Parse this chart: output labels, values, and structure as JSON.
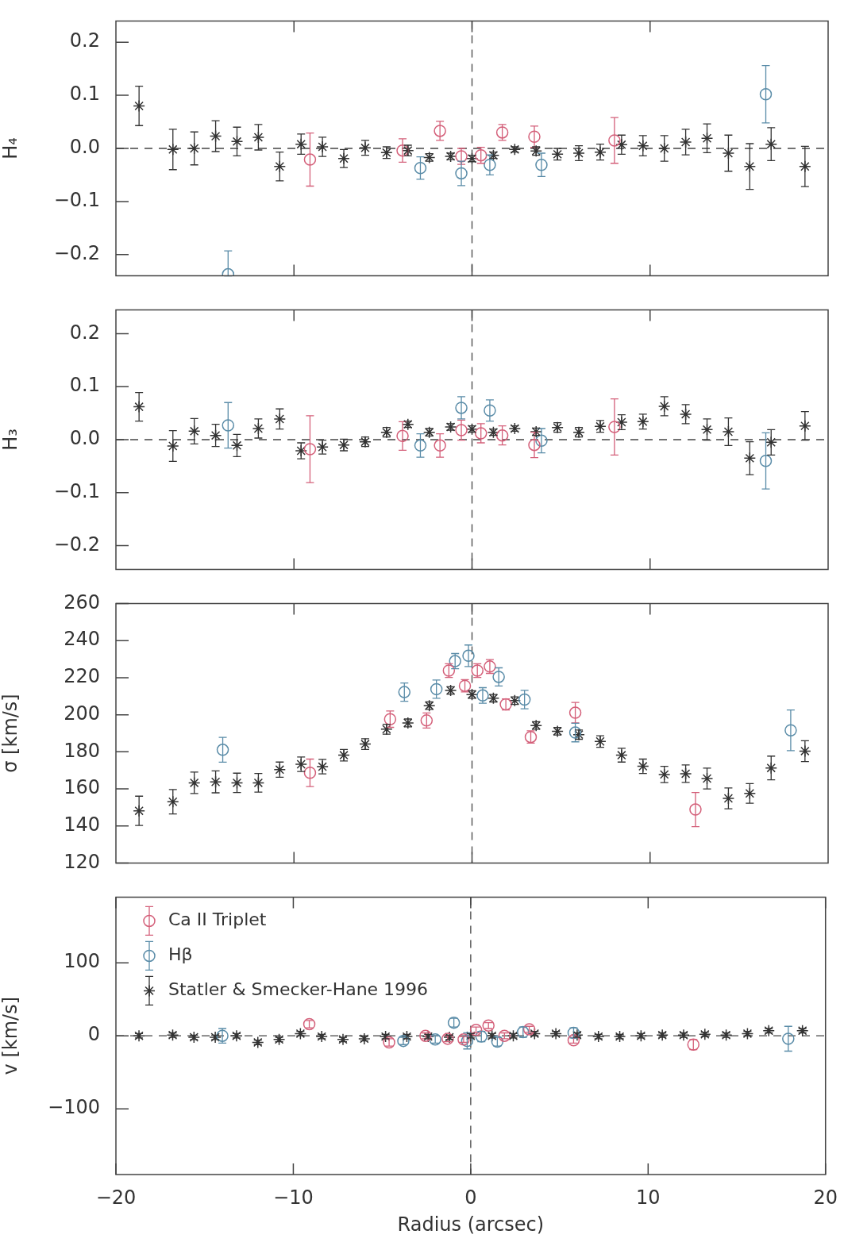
{
  "chart_data": [
    {
      "type": "scatter",
      "ylabel": "H₄",
      "xlim": [
        -20,
        20
      ],
      "xticks": [
        -10,
        0,
        10
      ],
      "ylim": [
        -0.24,
        0.24
      ],
      "yticks": [
        {
          "value": -0.2,
          "label": "−0.2"
        },
        {
          "value": -0.1,
          "label": "−0.1"
        },
        {
          "value": 0,
          "label": "0.0"
        },
        0.1,
        0.2
      ],
      "tick_labels": "y",
      "ref_lines": [
        {
          "axis": "x",
          "value": 0,
          "line_style": "dashed"
        },
        {
          "axis": "y",
          "value": 0,
          "line_style": "dashed"
        }
      ],
      "series": [
        {
          "color": "#d4607a",
          "marker": "circle",
          "x": [
            -9.1,
            -3.9,
            -1.8,
            -0.6,
            0.5,
            1.7,
            3.5,
            8.0
          ],
          "values": [
            -0.021,
            -0.004,
            0.033,
            -0.015,
            -0.013,
            0.03,
            0.022,
            0.015
          ],
          "errors": [
            0.05,
            0.022,
            0.018,
            0.015,
            0.015,
            0.015,
            0.02,
            0.043
          ]
        },
        {
          "color": "#5a8ca8",
          "marker": "circle",
          "x": [
            -13.7,
            -2.9,
            -0.6,
            1.0,
            3.9,
            16.5
          ],
          "values": [
            -0.237,
            -0.037,
            -0.047,
            -0.031,
            -0.031,
            0.102
          ],
          "errors": [
            [
              -0.24,
              -0.193
            ],
            0.021,
            0.023,
            0.019,
            0.022,
            0.054
          ]
        },
        {
          "color": "#333333",
          "marker": "cross",
          "x": [
            -18.7,
            -16.8,
            -15.6,
            -14.4,
            -13.2,
            -12.0,
            -10.8,
            -9.6,
            -8.4,
            -7.2,
            -6.0,
            -4.8,
            -3.6,
            -2.4,
            -1.2,
            0,
            1.2,
            2.4,
            3.6,
            4.8,
            6.0,
            7.2,
            8.4,
            9.6,
            10.8,
            12.0,
            13.2,
            14.4,
            15.6,
            16.8,
            18.7
          ],
          "values": [
            0.08,
            -0.002,
            0.0,
            0.023,
            0.013,
            0.021,
            -0.034,
            0.008,
            0.003,
            -0.019,
            0.001,
            -0.008,
            -0.004,
            -0.017,
            -0.015,
            -0.019,
            -0.013,
            -0.002,
            -0.005,
            -0.011,
            -0.009,
            -0.007,
            0.007,
            0.005,
            0.0,
            0.012,
            0.019,
            -0.009,
            -0.034,
            0.008,
            -0.034
          ],
          "errors": [
            0.037,
            0.038,
            0.031,
            0.029,
            0.027,
            0.024,
            0.027,
            0.019,
            0.018,
            0.017,
            0.014,
            0.011,
            0.01,
            0.007,
            0.006,
            0.006,
            0.006,
            0.005,
            0.008,
            0.011,
            0.014,
            0.015,
            0.018,
            0.019,
            0.024,
            0.024,
            0.027,
            0.034,
            0.043,
            0.031,
            0.038
          ]
        }
      ]
    },
    {
      "type": "scatter",
      "ylabel": "H₃",
      "xlim": [
        -20,
        20
      ],
      "xticks": [
        -10,
        0,
        10
      ],
      "ylim": [
        -0.245,
        0.245
      ],
      "yticks": [
        {
          "value": -0.2,
          "label": "−0.2"
        },
        {
          "value": -0.1,
          "label": "−0.1"
        },
        {
          "value": 0,
          "label": "0.0"
        },
        0.1,
        0.2
      ],
      "tick_labels": "y",
      "ref_lines": [
        {
          "axis": "x",
          "value": 0,
          "line_style": "dashed"
        },
        {
          "axis": "y",
          "value": 0,
          "line_style": "dashed"
        }
      ],
      "series": [
        {
          "color": "#d4607a",
          "marker": "circle",
          "x": [
            -9.1,
            -3.9,
            -1.8,
            -0.6,
            0.5,
            1.7,
            3.5,
            8.0
          ],
          "values": [
            -0.018,
            0.007,
            -0.011,
            0.018,
            0.012,
            0.008,
            -0.01,
            0.024
          ],
          "errors": [
            0.063,
            0.027,
            0.022,
            0.019,
            0.018,
            0.018,
            0.024,
            0.053
          ]
        },
        {
          "color": "#5a8ca8",
          "marker": "circle",
          "x": [
            -13.7,
            -2.9,
            -0.6,
            1.0,
            3.9,
            16.5
          ],
          "values": [
            0.027,
            -0.011,
            0.06,
            0.055,
            -0.002,
            -0.04
          ],
          "errors": [
            0.043,
            0.022,
            0.021,
            0.02,
            0.023,
            0.053
          ]
        },
        {
          "color": "#333333",
          "marker": "cross",
          "x": [
            -18.7,
            -16.8,
            -15.6,
            -14.4,
            -13.2,
            -12.0,
            -10.8,
            -9.6,
            -8.4,
            -7.2,
            -6.0,
            -4.8,
            -3.6,
            -2.4,
            -1.2,
            0,
            1.2,
            2.4,
            3.6,
            4.8,
            6.0,
            7.2,
            8.4,
            9.6,
            10.8,
            12.0,
            13.2,
            14.4,
            15.6,
            16.8,
            18.7
          ],
          "values": [
            0.062,
            -0.012,
            0.016,
            0.008,
            -0.011,
            0.021,
            0.039,
            -0.021,
            -0.014,
            -0.01,
            -0.004,
            0.014,
            0.029,
            0.014,
            0.024,
            0.02,
            0.014,
            0.021,
            0.015,
            0.023,
            0.014,
            0.025,
            0.033,
            0.034,
            0.063,
            0.048,
            0.019,
            0.015,
            -0.035,
            -0.005,
            0.026
          ],
          "errors": [
            0.027,
            0.029,
            0.024,
            0.021,
            0.021,
            0.018,
            0.019,
            0.015,
            0.013,
            0.011,
            0.009,
            0.009,
            0.006,
            0.007,
            0.006,
            0.006,
            0.006,
            0.005,
            0.007,
            0.009,
            0.009,
            0.011,
            0.014,
            0.014,
            0.018,
            0.018,
            0.02,
            0.026,
            0.031,
            0.024,
            0.027
          ]
        }
      ]
    },
    {
      "type": "scatter",
      "ylabel": "σ [km/s]",
      "xlim": [
        -20,
        20
      ],
      "xticks": [
        -10,
        0,
        10
      ],
      "ylim": [
        120,
        260
      ],
      "yticks": [
        120,
        140,
        160,
        180,
        200,
        220,
        240,
        260
      ],
      "tick_labels": "y",
      "ref_lines": [
        {
          "axis": "x",
          "value": 0,
          "line_style": "dashed"
        }
      ],
      "series": [
        {
          "color": "#d4607a",
          "marker": "circle",
          "x": [
            -9.1,
            -4.6,
            -2.55,
            -1.3,
            -0.4,
            0.3,
            1.0,
            1.9,
            3.3,
            5.8,
            12.55
          ],
          "values": [
            168.7,
            197.6,
            196.9,
            223.8,
            215.6,
            223.8,
            226.0,
            205.6,
            188.0,
            201.1,
            148.9
          ],
          "errors": [
            7.4,
            4.4,
            4.1,
            3.7,
            3.3,
            3.7,
            3.7,
            3.0,
            3.3,
            5.5,
            9.2
          ]
        },
        {
          "color": "#5a8ca8",
          "marker": "circle",
          "x": [
            -14.0,
            -3.8,
            -2.0,
            -0.95,
            -0.2,
            0.6,
            1.5,
            2.95,
            5.8,
            17.9
          ],
          "values": [
            181.1,
            212.2,
            213.8,
            228.9,
            231.8,
            210.4,
            220.4,
            208.2,
            190.4,
            191.6
          ],
          "errors": [
            6.7,
            4.9,
            4.9,
            4.1,
            5.8,
            4.2,
            4.9,
            5.0,
            5.0,
            11.0
          ]
        },
        {
          "color": "#333333",
          "marker": "cross",
          "x": [
            -18.7,
            -16.8,
            -15.6,
            -14.4,
            -13.2,
            -12.0,
            -10.8,
            -9.6,
            -8.4,
            -7.2,
            -6.0,
            -4.8,
            -3.6,
            -2.4,
            -1.2,
            0,
            1.2,
            2.4,
            3.6,
            4.8,
            6.0,
            7.2,
            8.4,
            9.6,
            10.8,
            12.0,
            13.2,
            14.4,
            15.6,
            16.8,
            18.7
          ],
          "values": [
            148.2,
            153.1,
            163.3,
            163.8,
            163.3,
            163.3,
            170.4,
            173.3,
            172.0,
            178.2,
            184.2,
            192.2,
            195.6,
            204.9,
            213.1,
            210.9,
            208.9,
            207.6,
            194.2,
            191.1,
            189.3,
            185.6,
            178.2,
            172.2,
            167.8,
            168.2,
            165.6,
            154.9,
            157.6,
            171.3,
            180.4
          ],
          "errors": [
            7.9,
            6.6,
            5.8,
            5.9,
            5.2,
            5.0,
            4.1,
            3.9,
            3.9,
            3.1,
            2.9,
            2.7,
            2.1,
            2.0,
            2.0,
            2.0,
            2.0,
            2.0,
            2.0,
            2.0,
            2.5,
            3.1,
            3.7,
            3.9,
            4.4,
            4.7,
            5.6,
            5.6,
            5.3,
            6.4,
            5.6
          ]
        }
      ]
    },
    {
      "type": "scatter",
      "ylabel": "v [km/s]",
      "xlabel": "Radius (arcsec)",
      "xlim": [
        -20,
        20
      ],
      "xticks": [
        {
          "value": -20,
          "label": "−20"
        },
        {
          "value": -10,
          "label": "−10"
        },
        0,
        10,
        20
      ],
      "ylim": [
        -190,
        190
      ],
      "yticks": [
        {
          "value": -100,
          "label": "−100"
        },
        0,
        100
      ],
      "legend": "top left",
      "ref_lines": [
        {
          "axis": "x",
          "value": 0,
          "line_style": "dashed"
        },
        {
          "axis": "y",
          "value": 0,
          "line_style": "dashed"
        }
      ],
      "series": [
        {
          "name": "Ca II Triplet",
          "color": "#d4607a",
          "marker": "circle",
          "x": [
            -9.1,
            -4.6,
            -2.55,
            -1.3,
            -0.4,
            0.3,
            1.0,
            1.9,
            3.3,
            5.8,
            12.55
          ],
          "values": [
            16,
            -9,
            0,
            -4,
            -5,
            8,
            14,
            0,
            9,
            -6,
            -12
          ],
          "errors": [
            5,
            5,
            4,
            4,
            4,
            4,
            4,
            4,
            4,
            4,
            7
          ]
        },
        {
          "name": "Hβ",
          "color": "#5a8ca8",
          "marker": "circle",
          "x": [
            -14.0,
            -3.8,
            -2.0,
            -0.95,
            -0.2,
            0.6,
            1.5,
            2.95,
            5.8,
            17.9
          ],
          "values": [
            0,
            -7,
            -5,
            18,
            -7,
            -1,
            -8,
            5,
            4,
            -4
          ],
          "errors": [
            10,
            5,
            5,
            6,
            11,
            7,
            6,
            7,
            7,
            17
          ]
        },
        {
          "name": "Statler & Smecker-Hane 1996",
          "color": "#333333",
          "marker": "cross",
          "x": [
            -18.7,
            -16.8,
            -15.6,
            -14.4,
            -13.2,
            -12.0,
            -10.8,
            -9.6,
            -8.4,
            -7.2,
            -6.0,
            -4.8,
            -3.6,
            -2.4,
            -1.2,
            0,
            1.2,
            2.4,
            3.6,
            4.8,
            6.0,
            7.2,
            8.4,
            9.6,
            10.8,
            12.0,
            13.2,
            14.4,
            15.6,
            16.8,
            18.7
          ],
          "values": [
            0,
            1,
            -2,
            -2,
            0,
            -9,
            -5,
            3,
            -1,
            -5,
            -4,
            -1,
            -1,
            -1,
            -2,
            0,
            0,
            0,
            3,
            3,
            1,
            -1,
            -1,
            0,
            1,
            1,
            2,
            1,
            3,
            7,
            7
          ],
          "errors": [
            3,
            3,
            3,
            3,
            3,
            3,
            3,
            3,
            3,
            3,
            3,
            3,
            3,
            3,
            3,
            3,
            3,
            3,
            3,
            3,
            3,
            3,
            3,
            3,
            3,
            3,
            3,
            3,
            3,
            3,
            3
          ]
        }
      ]
    }
  ]
}
